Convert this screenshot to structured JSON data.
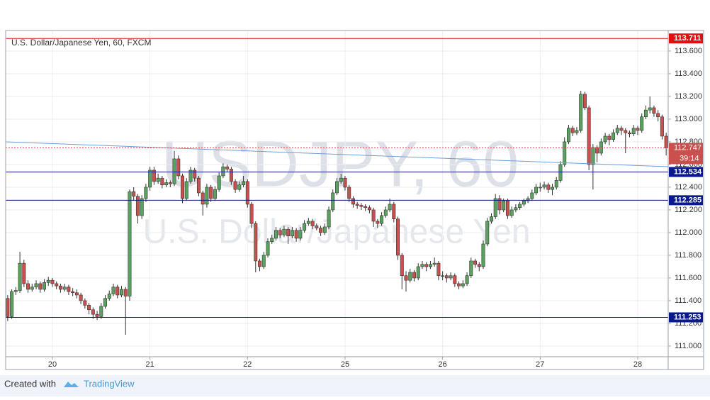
{
  "chart_data": {
    "type": "candlestick",
    "title": "U.S. Dollar/Japanese Yen, 60, FXCM",
    "watermark": [
      "USDJPY, 60",
      "U.S. Dollar/Japanese Yen"
    ],
    "footer": {
      "prefix": "Created with",
      "brand": "TradingView"
    },
    "up_color": "#5aa35e",
    "down_color": "#c9504d",
    "ylim": [
      110.906,
      113.781
    ],
    "yticks": [
      {
        "value": 111.0,
        "label": "111.000"
      },
      {
        "value": 111.2,
        "label": "111.200"
      },
      {
        "value": 111.4,
        "label": "111.400"
      },
      {
        "value": 111.6,
        "label": "111.600"
      },
      {
        "value": 111.8,
        "label": "111.800"
      },
      {
        "value": 112.0,
        "label": "112.000"
      },
      {
        "value": 112.2,
        "label": "112.200"
      },
      {
        "value": 112.4,
        "label": "112.400"
      },
      {
        "value": 112.6,
        "label": "112.600"
      },
      {
        "value": 112.8,
        "label": "112.800"
      },
      {
        "value": 113.0,
        "label": "113.000"
      },
      {
        "value": 113.2,
        "label": "113.200"
      },
      {
        "value": 113.4,
        "label": "113.400"
      },
      {
        "value": 113.6,
        "label": "113.600"
      }
    ],
    "grid": true,
    "levels": [
      {
        "value": 113.711,
        "color": "#e01010"
      },
      {
        "value": 112.534,
        "color": "#0a1a8c"
      },
      {
        "value": 112.285,
        "color": "#0a1a8c"
      },
      {
        "value": 111.253,
        "color": "#0a1a8c"
      }
    ],
    "current": {
      "value": 112.747,
      "countdown": "39:14",
      "color": "#c9504d"
    },
    "trendline": {
      "start": 112.8,
      "end": 112.581,
      "color": "#6e9fd8"
    },
    "categories": [
      null,
      null,
      null,
      null,
      null,
      null,
      null,
      null,
      null,
      null,
      null,
      "20",
      null,
      null,
      null,
      null,
      null,
      null,
      null,
      null,
      null,
      null,
      null,
      null,
      null,
      null,
      null,
      null,
      null,
      null,
      null,
      null,
      null,
      null,
      null,
      "21",
      null,
      null,
      null,
      null,
      null,
      null,
      null,
      null,
      null,
      null,
      null,
      null,
      null,
      null,
      null,
      null,
      null,
      null,
      null,
      null,
      null,
      null,
      null,
      "22",
      null,
      null,
      null,
      null,
      null,
      null,
      null,
      null,
      null,
      null,
      null,
      null,
      null,
      null,
      null,
      null,
      null,
      null,
      null,
      null,
      null,
      null,
      null,
      "25",
      null,
      null,
      null,
      null,
      null,
      null,
      null,
      null,
      null,
      null,
      null,
      null,
      null,
      null,
      null,
      null,
      null,
      null,
      null,
      null,
      null,
      null,
      null,
      "26",
      null,
      null,
      null,
      null,
      null,
      null,
      null,
      null,
      null,
      null,
      null,
      null,
      null,
      null,
      null,
      null,
      null,
      null,
      null,
      null,
      null,
      null,
      null,
      "27",
      null,
      null,
      null,
      null,
      null,
      null,
      null,
      null,
      null,
      null,
      null,
      null,
      null,
      null,
      null,
      null,
      null,
      null,
      null,
      null,
      null,
      null,
      null,
      "28",
      null,
      null,
      null,
      null,
      null,
      null,
      null
    ],
    "ohlc": [
      [
        111.42,
        111.45,
        111.22,
        111.26
      ],
      [
        111.26,
        111.5,
        111.24,
        111.48
      ],
      [
        111.48,
        111.52,
        111.45,
        111.49
      ],
      [
        111.49,
        111.83,
        111.47,
        111.73
      ],
      [
        111.73,
        111.76,
        111.52,
        111.55
      ],
      [
        111.55,
        111.58,
        111.47,
        111.5
      ],
      [
        111.5,
        111.55,
        111.48,
        111.52
      ],
      [
        111.52,
        111.58,
        111.5,
        111.55
      ],
      [
        111.55,
        111.57,
        111.47,
        111.5
      ],
      [
        111.5,
        111.59,
        111.48,
        111.56
      ],
      [
        111.56,
        111.61,
        111.53,
        111.58
      ],
      [
        111.58,
        111.6,
        111.52,
        111.55
      ],
      [
        111.55,
        111.57,
        111.5,
        111.53
      ],
      [
        111.53,
        111.55,
        111.47,
        111.5
      ],
      [
        111.5,
        111.55,
        111.48,
        111.52
      ],
      [
        111.52,
        111.54,
        111.45,
        111.48
      ],
      [
        111.48,
        111.51,
        111.44,
        111.47
      ],
      [
        111.47,
        111.5,
        111.42,
        111.45
      ],
      [
        111.45,
        111.47,
        111.37,
        111.4
      ],
      [
        111.4,
        111.42,
        111.33,
        111.36
      ],
      [
        111.36,
        111.38,
        111.28,
        111.32
      ],
      [
        111.32,
        111.34,
        111.24,
        111.28
      ],
      [
        111.28,
        111.31,
        111.23,
        111.26
      ],
      [
        111.26,
        111.38,
        111.24,
        111.35
      ],
      [
        111.35,
        111.45,
        111.33,
        111.42
      ],
      [
        111.42,
        111.49,
        111.4,
        111.46
      ],
      [
        111.46,
        111.55,
        111.44,
        111.52
      ],
      [
        111.52,
        111.54,
        111.42,
        111.45
      ],
      [
        111.45,
        111.53,
        111.43,
        111.5
      ],
      [
        111.5,
        111.52,
        111.1,
        111.44
      ],
      [
        111.44,
        112.38,
        111.4,
        112.36
      ],
      [
        112.36,
        112.4,
        112.28,
        112.32
      ],
      [
        112.32,
        112.34,
        112.08,
        112.15
      ],
      [
        112.15,
        112.33,
        112.12,
        112.3
      ],
      [
        112.3,
        112.43,
        112.27,
        112.4
      ],
      [
        112.4,
        112.58,
        112.37,
        112.55
      ],
      [
        112.55,
        112.58,
        112.42,
        112.45
      ],
      [
        112.45,
        112.52,
        112.43,
        112.48
      ],
      [
        112.48,
        112.5,
        112.39,
        112.42
      ],
      [
        112.42,
        112.47,
        112.4,
        112.44
      ],
      [
        112.44,
        112.46,
        112.4,
        112.43
      ],
      [
        112.43,
        112.72,
        112.41,
        112.65
      ],
      [
        112.65,
        112.68,
        112.47,
        112.5
      ],
      [
        112.5,
        112.52,
        112.26,
        112.3
      ],
      [
        112.3,
        112.48,
        112.28,
        112.45
      ],
      [
        112.45,
        112.58,
        112.43,
        112.55
      ],
      [
        112.55,
        112.57,
        112.45,
        112.48
      ],
      [
        112.48,
        112.5,
        112.32,
        112.35
      ],
      [
        112.35,
        112.37,
        112.15,
        112.25
      ],
      [
        112.25,
        112.43,
        112.22,
        112.4
      ],
      [
        112.4,
        112.42,
        112.27,
        112.3
      ],
      [
        112.3,
        112.41,
        112.28,
        112.38
      ],
      [
        112.38,
        112.53,
        112.36,
        112.5
      ],
      [
        112.5,
        112.61,
        112.48,
        112.58
      ],
      [
        112.58,
        112.6,
        112.53,
        112.56
      ],
      [
        112.56,
        112.58,
        112.42,
        112.45
      ],
      [
        112.45,
        112.47,
        112.35,
        112.38
      ],
      [
        112.38,
        112.45,
        112.36,
        112.42
      ],
      [
        112.42,
        112.5,
        112.4,
        112.45
      ],
      [
        112.45,
        112.47,
        112.22,
        112.25
      ],
      [
        112.25,
        112.27,
        112.04,
        112.08
      ],
      [
        112.08,
        112.1,
        111.65,
        111.75
      ],
      [
        111.75,
        111.77,
        111.66,
        111.7
      ],
      [
        111.7,
        111.83,
        111.68,
        111.8
      ],
      [
        111.8,
        111.95,
        111.78,
        111.92
      ],
      [
        111.92,
        111.98,
        111.9,
        111.95
      ],
      [
        111.95,
        112.05,
        111.93,
        112.02
      ],
      [
        112.02,
        112.04,
        111.95,
        111.98
      ],
      [
        111.98,
        112.06,
        111.96,
        112.03
      ],
      [
        112.03,
        112.05,
        111.9,
        111.97
      ],
      [
        111.97,
        112.05,
        111.95,
        112.02
      ],
      [
        112.02,
        112.04,
        111.92,
        111.95
      ],
      [
        111.95,
        112.05,
        111.93,
        112.02
      ],
      [
        112.02,
        112.11,
        112.0,
        112.08
      ],
      [
        112.08,
        112.13,
        112.06,
        112.1
      ],
      [
        112.1,
        112.12,
        112.03,
        112.06
      ],
      [
        112.06,
        112.08,
        112.02,
        112.04
      ],
      [
        112.04,
        112.06,
        111.97,
        112.0
      ],
      [
        112.0,
        112.08,
        111.98,
        112.05
      ],
      [
        112.05,
        112.23,
        112.03,
        112.2
      ],
      [
        112.2,
        112.38,
        112.18,
        112.35
      ],
      [
        112.35,
        112.48,
        112.33,
        112.45
      ],
      [
        112.45,
        112.52,
        112.43,
        112.48
      ],
      [
        112.48,
        112.5,
        112.37,
        112.4
      ],
      [
        112.4,
        112.42,
        112.27,
        112.3
      ],
      [
        112.3,
        112.32,
        112.22,
        112.25
      ],
      [
        112.25,
        112.27,
        112.21,
        112.24
      ],
      [
        112.24,
        112.26,
        112.2,
        112.23
      ],
      [
        112.23,
        112.25,
        112.19,
        112.22
      ],
      [
        112.22,
        112.24,
        112.17,
        112.2
      ],
      [
        112.2,
        112.22,
        112.05,
        112.1
      ],
      [
        112.1,
        112.12,
        112.04,
        112.08
      ],
      [
        112.08,
        112.18,
        112.06,
        112.15
      ],
      [
        112.15,
        112.23,
        112.13,
        112.2
      ],
      [
        112.2,
        112.3,
        112.18,
        112.25
      ],
      [
        112.25,
        112.27,
        112.09,
        112.12
      ],
      [
        112.12,
        112.14,
        111.76,
        111.8
      ],
      [
        111.8,
        111.82,
        111.5,
        111.62
      ],
      [
        111.62,
        111.66,
        111.48,
        111.58
      ],
      [
        111.58,
        111.68,
        111.56,
        111.65
      ],
      [
        111.65,
        111.67,
        111.57,
        111.6
      ],
      [
        111.6,
        111.73,
        111.58,
        111.7
      ],
      [
        111.7,
        111.75,
        111.68,
        111.72
      ],
      [
        111.72,
        111.74,
        111.66,
        111.7
      ],
      [
        111.7,
        111.75,
        111.68,
        111.72
      ],
      [
        111.72,
        111.78,
        111.7,
        111.73
      ],
      [
        111.73,
        111.75,
        111.58,
        111.62
      ],
      [
        111.62,
        111.66,
        111.58,
        111.62
      ],
      [
        111.62,
        111.64,
        111.56,
        111.6
      ],
      [
        111.6,
        111.65,
        111.58,
        111.62
      ],
      [
        111.62,
        111.64,
        111.52,
        111.55
      ],
      [
        111.55,
        111.57,
        111.5,
        111.53
      ],
      [
        111.53,
        111.58,
        111.51,
        111.55
      ],
      [
        111.55,
        111.65,
        111.53,
        111.62
      ],
      [
        111.62,
        111.78,
        111.6,
        111.75
      ],
      [
        111.75,
        111.77,
        111.69,
        111.72
      ],
      [
        111.72,
        111.74,
        111.66,
        111.7
      ],
      [
        111.7,
        111.93,
        111.68,
        111.9
      ],
      [
        111.9,
        112.13,
        111.88,
        112.1
      ],
      [
        112.1,
        112.17,
        112.08,
        112.14
      ],
      [
        112.14,
        112.34,
        112.12,
        112.3
      ],
      [
        112.3,
        112.33,
        112.16,
        112.2
      ],
      [
        112.2,
        112.3,
        112.18,
        112.28
      ],
      [
        112.28,
        112.3,
        112.12,
        112.15
      ],
      [
        112.15,
        112.23,
        112.13,
        112.2
      ],
      [
        112.2,
        112.25,
        112.18,
        112.22
      ],
      [
        112.22,
        112.27,
        112.2,
        112.25
      ],
      [
        112.25,
        112.3,
        112.23,
        112.28
      ],
      [
        112.28,
        112.32,
        112.26,
        112.3
      ],
      [
        112.3,
        112.38,
        112.28,
        112.35
      ],
      [
        112.35,
        112.43,
        112.33,
        112.4
      ],
      [
        112.4,
        112.44,
        112.36,
        112.4
      ],
      [
        112.4,
        112.45,
        112.38,
        112.42
      ],
      [
        112.42,
        112.44,
        112.35,
        112.38
      ],
      [
        112.38,
        112.43,
        112.33,
        112.4
      ],
      [
        112.4,
        112.49,
        112.38,
        112.46
      ],
      [
        112.46,
        112.63,
        112.44,
        112.6
      ],
      [
        112.6,
        112.84,
        112.58,
        112.8
      ],
      [
        112.8,
        112.95,
        112.78,
        112.92
      ],
      [
        112.92,
        112.94,
        112.85,
        112.88
      ],
      [
        112.88,
        112.93,
        112.86,
        112.9
      ],
      [
        112.9,
        113.25,
        112.88,
        113.22
      ],
      [
        113.22,
        113.24,
        113.08,
        113.1
      ],
      [
        113.1,
        113.12,
        112.55,
        112.6
      ],
      [
        112.6,
        112.78,
        112.38,
        112.75
      ],
      [
        112.75,
        112.77,
        112.62,
        112.7
      ],
      [
        112.7,
        112.83,
        112.68,
        112.8
      ],
      [
        112.8,
        112.88,
        112.78,
        112.85
      ],
      [
        112.85,
        112.87,
        112.77,
        112.82
      ],
      [
        112.82,
        112.91,
        112.8,
        112.88
      ],
      [
        112.88,
        112.95,
        112.86,
        112.92
      ],
      [
        112.92,
        112.94,
        112.86,
        112.9
      ],
      [
        112.9,
        112.92,
        112.7,
        112.88
      ],
      [
        112.88,
        112.9,
        112.84,
        112.87
      ],
      [
        112.87,
        112.95,
        112.85,
        112.92
      ],
      [
        112.92,
        112.94,
        112.86,
        112.9
      ],
      [
        112.9,
        113.05,
        112.88,
        113.02
      ],
      [
        113.02,
        113.12,
        113.0,
        113.08
      ],
      [
        113.08,
        113.2,
        113.05,
        113.1
      ],
      [
        113.1,
        113.12,
        113.02,
        113.05
      ],
      [
        113.05,
        113.08,
        112.98,
        113.02
      ],
      [
        113.02,
        113.04,
        112.82,
        112.85
      ],
      [
        112.85,
        112.88,
        112.68,
        112.747
      ]
    ]
  }
}
